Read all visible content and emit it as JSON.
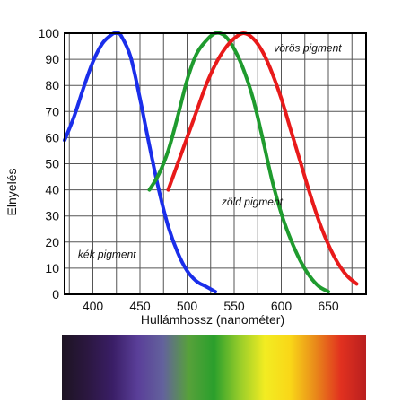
{
  "chart_data": {
    "type": "line",
    "xlabel": "Hullámhossz (nanométer)",
    "ylabel": "Elnyelés",
    "xlim": [
      370,
      690
    ],
    "ylim": [
      0,
      100
    ],
    "x_ticks": [
      400,
      450,
      500,
      550,
      600,
      650
    ],
    "y_ticks": [
      0,
      10,
      20,
      30,
      40,
      50,
      60,
      70,
      80,
      90,
      100
    ],
    "grid": true,
    "series": [
      {
        "name": "kék pigment",
        "color": "#1a2eea",
        "x": [
          370,
          380,
          390,
          400,
          410,
          420,
          425,
          430,
          440,
          450,
          460,
          470,
          480,
          490,
          500,
          510,
          520,
          530
        ],
        "y": [
          59,
          68,
          79,
          89,
          96,
          99.5,
          100,
          99,
          91,
          75,
          57,
          40,
          26,
          16,
          9,
          5,
          3,
          1
        ]
      },
      {
        "name": "zöld pigment",
        "color": "#1f9b2e",
        "x": [
          460,
          470,
          480,
          490,
          500,
          510,
          520,
          530,
          540,
          550,
          560,
          570,
          580,
          590,
          600,
          610,
          620,
          630,
          640,
          650
        ],
        "y": [
          40,
          46,
          55,
          68,
          82,
          92,
          97,
          100,
          99,
          94,
          86,
          75,
          60,
          44,
          31,
          21,
          13,
          7,
          3,
          1
        ]
      },
      {
        "name": "vörös pigment",
        "color": "#e81a1a",
        "x": [
          480,
          490,
          500,
          510,
          520,
          530,
          540,
          550,
          560,
          570,
          580,
          590,
          600,
          610,
          620,
          630,
          640,
          650,
          660,
          670,
          680
        ],
        "y": [
          40,
          50,
          60,
          70,
          80,
          88,
          94,
          98,
          100,
          98,
          93,
          85,
          75,
          63,
          51,
          39,
          28,
          19,
          12,
          7,
          4
        ]
      }
    ],
    "annotations": [
      {
        "text": "vörös pigment",
        "x": 628,
        "y": 93
      },
      {
        "text": "zöld pigment",
        "x": 569,
        "y": 34
      },
      {
        "text": "kék pigment",
        "x": 415,
        "y": 14
      }
    ]
  },
  "spectrum": {
    "stops": [
      "#1d1422",
      "#2b1740",
      "#3a1e66",
      "#5a3f99",
      "#63629c",
      "#57a13a",
      "#2a9f2c",
      "#95cc2a",
      "#f2ec22",
      "#f9d718",
      "#e98a1a",
      "#e1311f",
      "#b91f1f"
    ]
  }
}
